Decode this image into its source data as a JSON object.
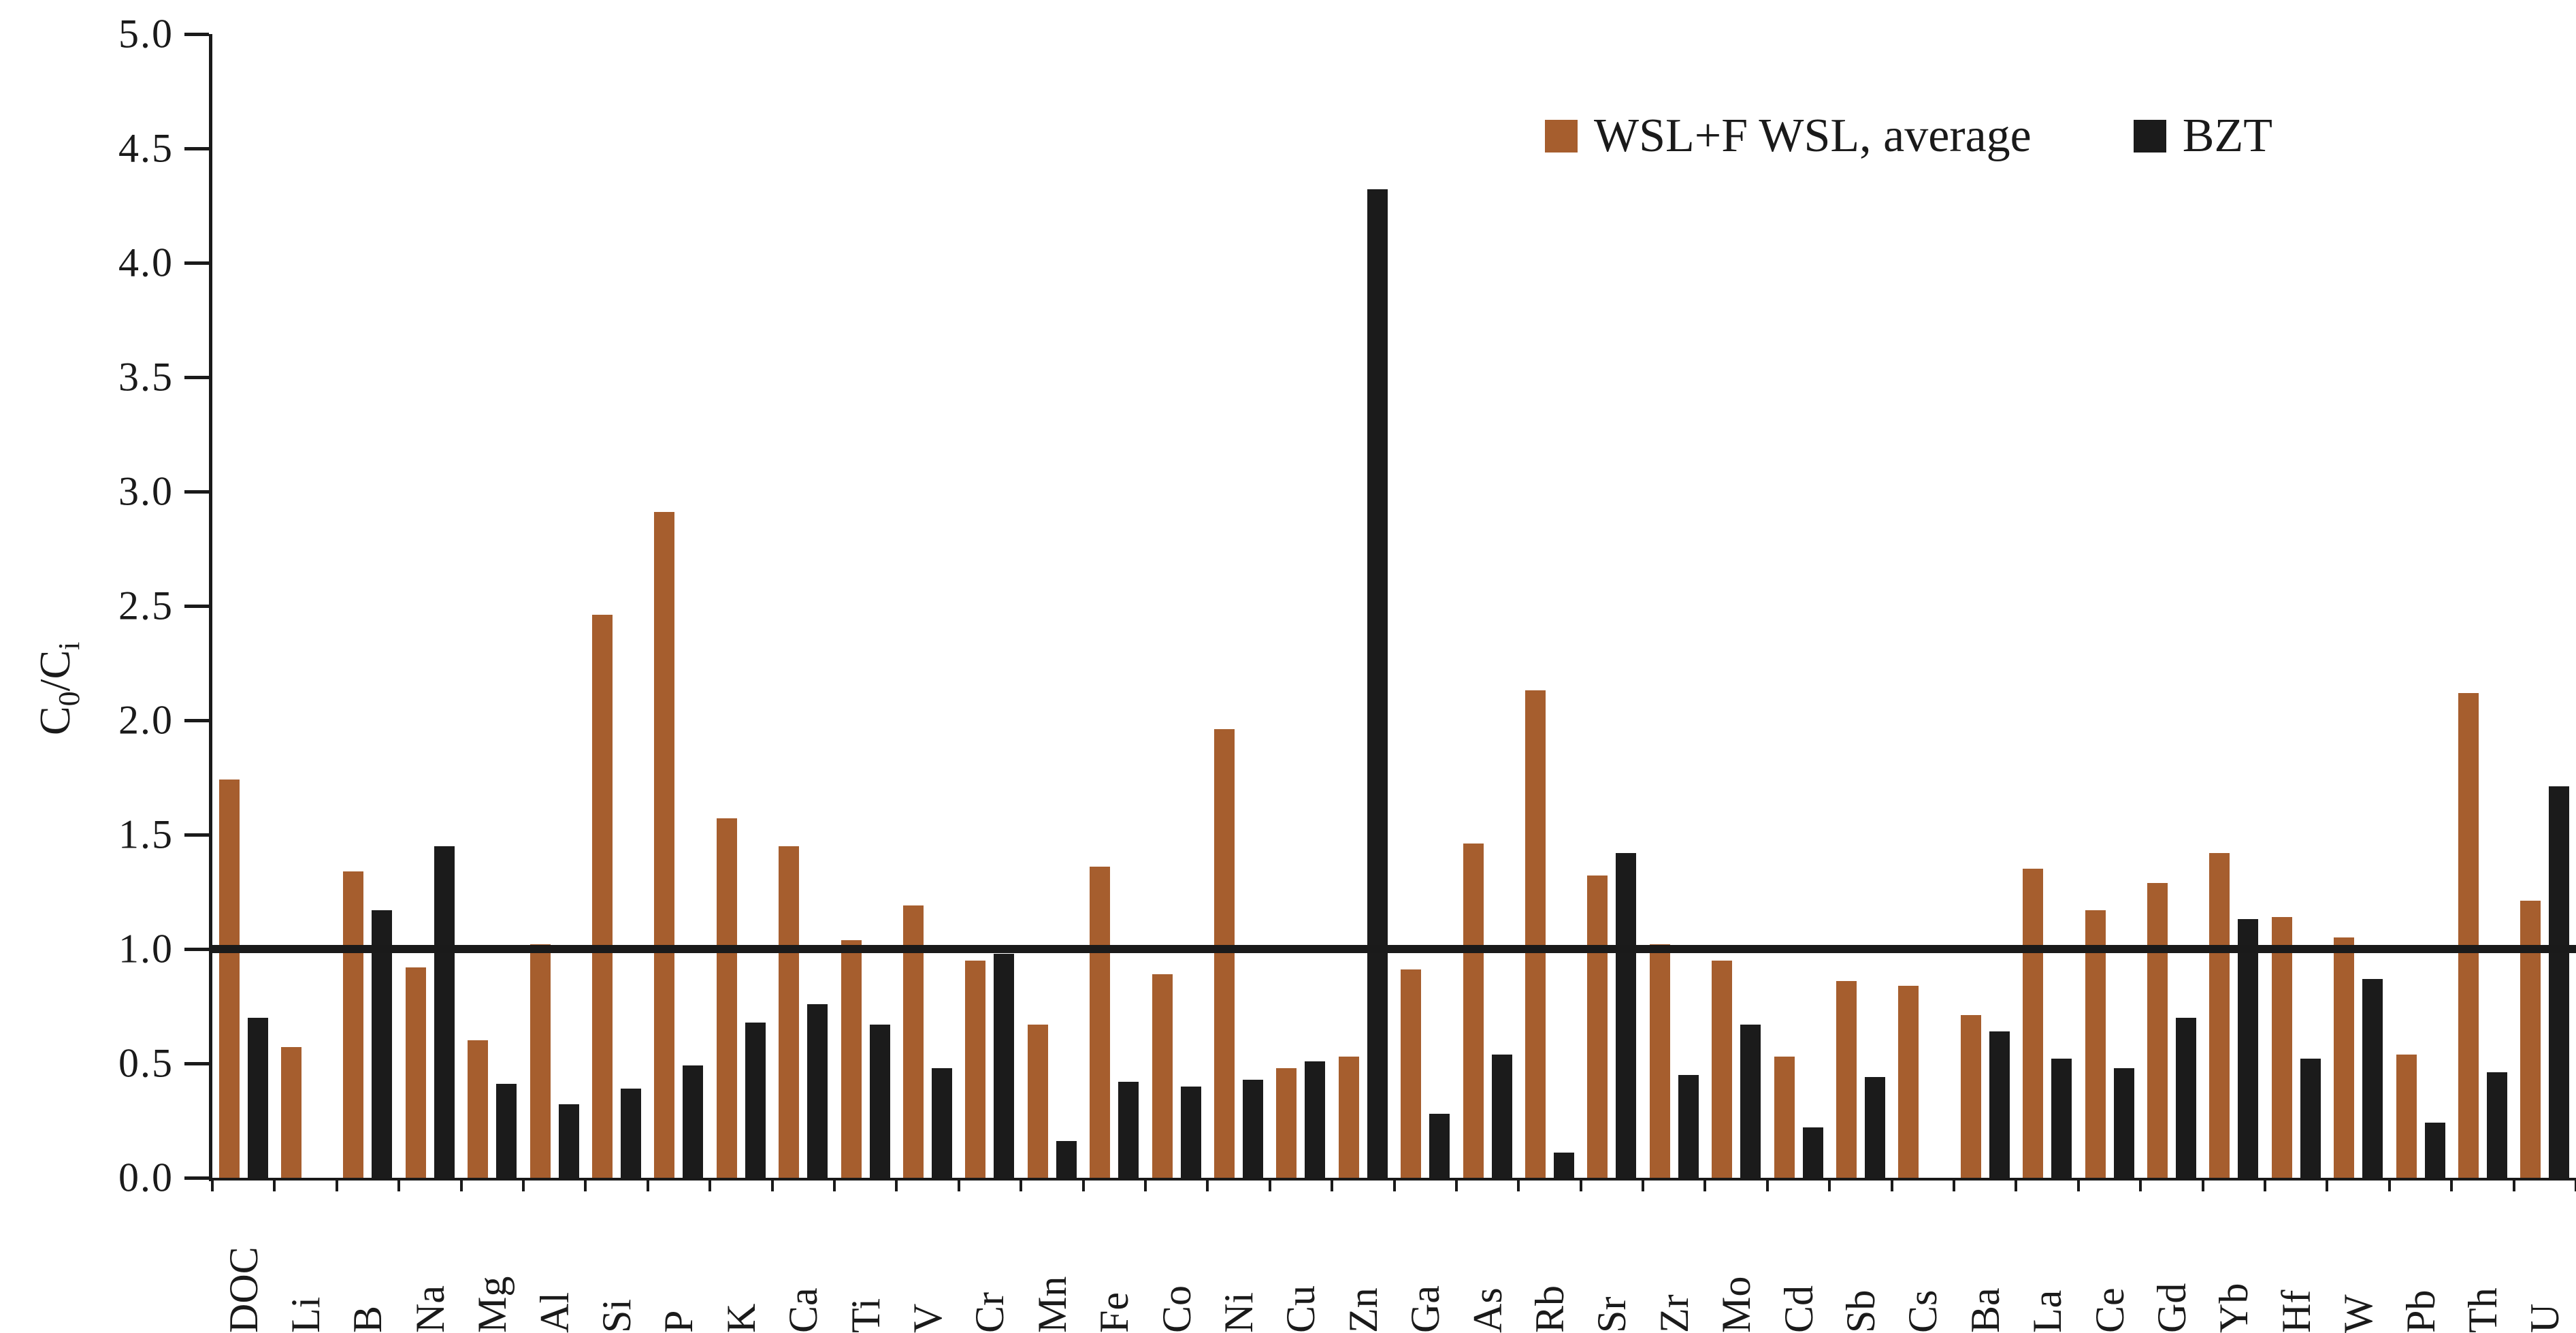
{
  "figure_background": "#ffffff",
  "axis_color": "#1a1a1a",
  "chart_data": {
    "type": "bar",
    "title": "",
    "xlabel": "",
    "ylabel": "C0/Ci",
    "ylabel_parts": {
      "base1": "C",
      "sub1": "0",
      "base2": "/C",
      "sub2": "i"
    },
    "ylim": [
      0,
      5
    ],
    "ytick_step": 0.5,
    "y_ticks": [
      "5.0",
      "4.5",
      "4.0",
      "3.5",
      "3.0",
      "2.5",
      "2.0",
      "1.5",
      "1.0",
      "0.5",
      "0.0"
    ],
    "reference_line_y": 1.0,
    "grid": false,
    "legend_position": "top-right-inside",
    "categories": [
      "DOC",
      "Li",
      "B",
      "Na",
      "Mg",
      "Al",
      "Si",
      "P",
      "K",
      "Ca",
      "Ti",
      "V",
      "Cr",
      "Mn",
      "Fe",
      "Co",
      "Ni",
      "Cu",
      "Zn",
      "Ga",
      "As",
      "Rb",
      "Sr",
      "Zr",
      "Mo",
      "Cd",
      "Sb",
      "Cs",
      "Ba",
      "La",
      "Ce",
      "Gd",
      "Yb",
      "Hf",
      "W",
      "Pb",
      "Th",
      "U"
    ],
    "series": [
      {
        "name": "WSL+F WSL, average",
        "color": "#A65E2E",
        "values": [
          1.74,
          0.57,
          1.34,
          0.92,
          0.6,
          1.02,
          2.46,
          2.91,
          1.57,
          1.45,
          1.04,
          1.19,
          0.95,
          0.67,
          1.36,
          0.89,
          1.96,
          0.48,
          0.53,
          0.91,
          1.46,
          2.13,
          1.32,
          1.02,
          0.95,
          0.53,
          0.86,
          0.84,
          0.71,
          1.35,
          1.17,
          1.29,
          1.42,
          1.14,
          1.05,
          0.54,
          2.12,
          1.21
        ]
      },
      {
        "name": "BZT",
        "color": "#1B1B1B",
        "values": [
          0.7,
          null,
          1.17,
          1.45,
          0.41,
          0.32,
          0.39,
          0.49,
          0.68,
          0.76,
          0.67,
          0.48,
          0.98,
          0.16,
          0.42,
          0.4,
          0.43,
          0.51,
          4.32,
          0.28,
          0.54,
          0.11,
          1.42,
          0.45,
          0.67,
          0.22,
          0.44,
          null,
          0.64,
          0.52,
          0.48,
          0.7,
          1.13,
          0.52,
          0.87,
          0.24,
          0.46,
          1.71
        ]
      }
    ]
  }
}
